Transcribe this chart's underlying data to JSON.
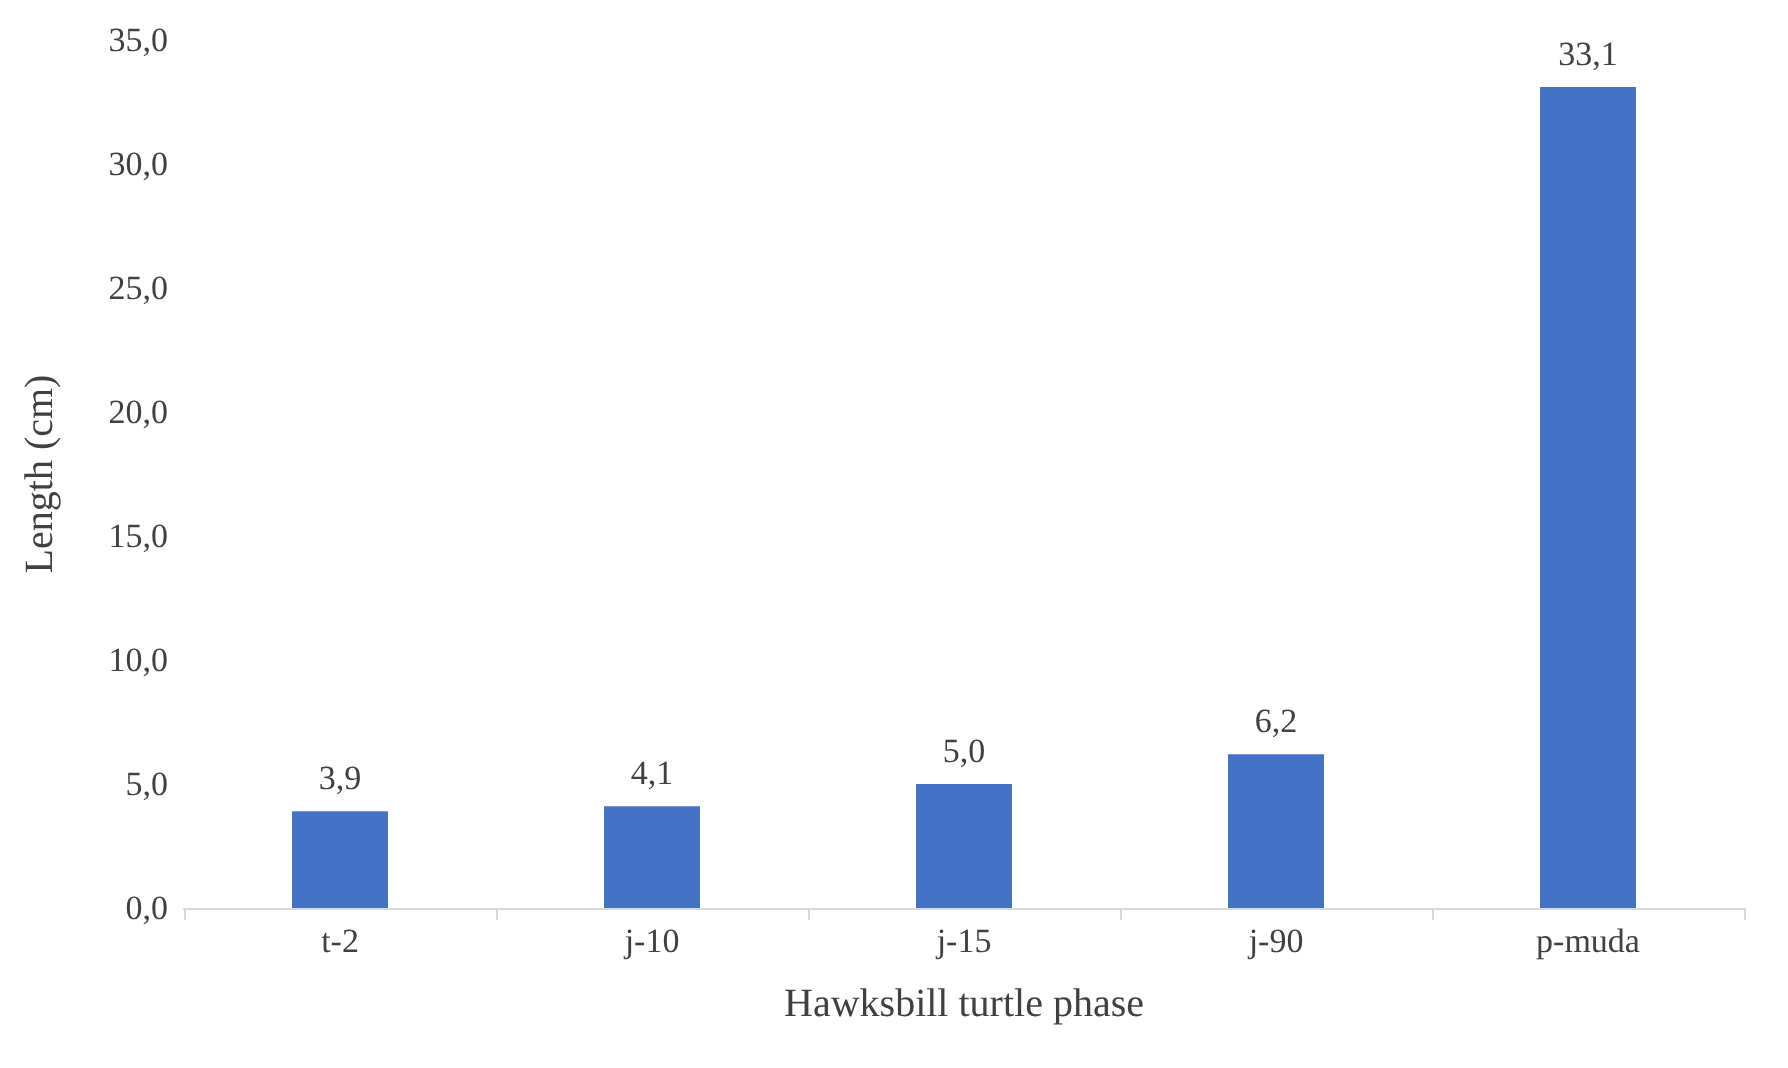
{
  "chart_data": {
    "type": "bar",
    "xlabel": "Hawksbill turtle phase",
    "ylabel": "Length (cm)",
    "categories": [
      "t-2",
      "j-10",
      "j-15",
      "j-90",
      "p-muda"
    ],
    "values": [
      3.9,
      4.1,
      5.0,
      6.2,
      33.1
    ],
    "value_labels": [
      "3,9",
      "4,1",
      "5,0",
      "6,2",
      "33,1"
    ],
    "color": "#4472c4",
    "ylim": [
      0,
      35
    ],
    "yticks": [
      {
        "value": 0,
        "label": "0,0"
      },
      {
        "value": 5,
        "label": "5,0"
      },
      {
        "value": 10,
        "label": "10,0"
      },
      {
        "value": 15,
        "label": "15,0"
      },
      {
        "value": 20,
        "label": "20,0"
      },
      {
        "value": 25,
        "label": "25,0"
      },
      {
        "value": 30,
        "label": "30,0"
      },
      {
        "value": 35,
        "label": "35,0"
      }
    ],
    "grid": false
  }
}
